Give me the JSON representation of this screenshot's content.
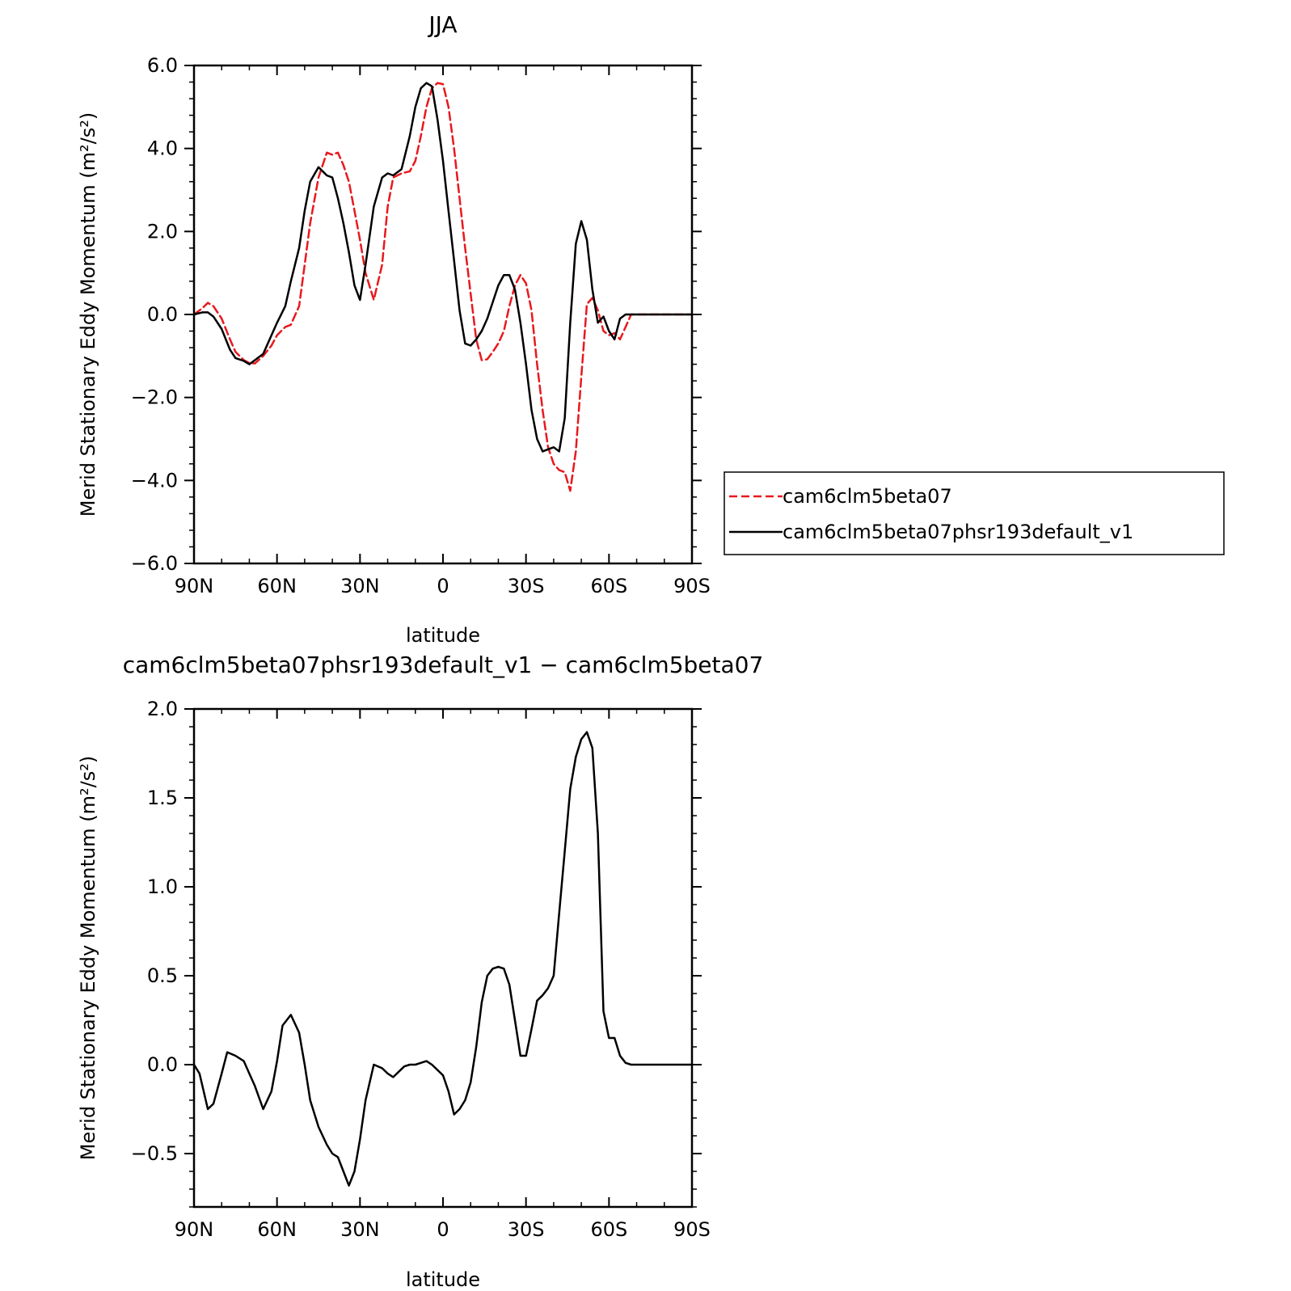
{
  "chart_data": [
    {
      "type": "line",
      "title": "JJA",
      "xlabel": "latitude",
      "ylabel": "Merid Stationary Eddy Momentum (m²/s²)",
      "xlim": [
        -90,
        90
      ],
      "ylim": [
        -6.0,
        6.0
      ],
      "xticks": [
        -90,
        -60,
        -30,
        0,
        30,
        60,
        90
      ],
      "xtick_labels": [
        "90N",
        "60N",
        "30N",
        "0",
        "30S",
        "60S",
        "90S"
      ],
      "yticks": [
        -6.0,
        -4.0,
        -2.0,
        0.0,
        2.0,
        4.0,
        6.0
      ],
      "ytick_labels": [
        "−6.0",
        "−4.0",
        "−2.0",
        "0.0",
        "2.0",
        "4.0",
        "6.0"
      ],
      "grid": false,
      "legend": "right",
      "series": [
        {
          "name": "cam6clm5beta07",
          "color": "#e8191e",
          "dash": "dashed",
          "x": [
            -90,
            -87,
            -85,
            -83,
            -80,
            -77,
            -75,
            -72,
            -70,
            -68,
            -65,
            -62,
            -60,
            -57,
            -55,
            -52,
            -50,
            -48,
            -45,
            -42,
            -40,
            -38,
            -36,
            -34,
            -32,
            -30,
            -28,
            -25,
            -22,
            -20,
            -18,
            -15,
            -12,
            -10,
            -8,
            -6,
            -4,
            -2,
            0,
            2,
            4,
            6,
            8,
            10,
            12,
            14,
            16,
            18,
            20,
            22,
            24,
            26,
            28,
            30,
            32,
            34,
            36,
            38,
            40,
            42,
            44,
            46,
            48,
            50,
            52,
            54,
            56,
            58,
            60,
            62,
            64,
            66,
            68,
            70,
            72,
            74,
            76,
            78,
            80,
            82,
            84,
            85,
            86,
            88,
            90
          ],
          "y": [
            0.0,
            0.15,
            0.28,
            0.2,
            -0.1,
            -0.6,
            -0.9,
            -1.1,
            -1.17,
            -1.18,
            -1.0,
            -0.75,
            -0.5,
            -0.3,
            -0.25,
            0.2,
            1.2,
            2.2,
            3.3,
            3.9,
            3.85,
            3.9,
            3.6,
            3.2,
            2.5,
            1.8,
            1.0,
            0.35,
            1.2,
            2.6,
            3.3,
            3.4,
            3.45,
            3.7,
            4.3,
            5.0,
            5.45,
            5.58,
            5.55,
            5.0,
            4.0,
            2.8,
            1.6,
            0.5,
            -0.6,
            -1.1,
            -1.08,
            -0.9,
            -0.7,
            -0.4,
            0.2,
            0.7,
            0.95,
            0.75,
            0.1,
            -1.2,
            -2.3,
            -3.2,
            -3.6,
            -3.75,
            -3.8,
            -4.25,
            -3.3,
            -1.5,
            0.25,
            0.4,
            0.1,
            -0.4,
            -0.5,
            -0.45,
            -0.6,
            -0.3,
            0.0,
            0.0,
            0.0,
            0.0,
            0.0,
            0.0,
            0.0,
            0.0,
            0.0,
            0.0,
            0.0,
            0.0,
            0.0
          ]
        },
        {
          "name": "cam6clm5beta07phsr193default_v1",
          "color": "#000000",
          "dash": "solid",
          "x": [
            -90,
            -87,
            -85,
            -83,
            -80,
            -77,
            -75,
            -72,
            -70,
            -68,
            -65,
            -62,
            -60,
            -57,
            -55,
            -52,
            -50,
            -48,
            -45,
            -42,
            -40,
            -38,
            -36,
            -34,
            -32,
            -30,
            -28,
            -25,
            -22,
            -20,
            -18,
            -15,
            -12,
            -10,
            -8,
            -6,
            -4,
            -2,
            0,
            2,
            4,
            6,
            8,
            10,
            12,
            14,
            16,
            18,
            20,
            22,
            24,
            26,
            28,
            30,
            32,
            34,
            36,
            38,
            40,
            42,
            44,
            46,
            48,
            50,
            52,
            54,
            56,
            58,
            60,
            62,
            64,
            66,
            68,
            70,
            72,
            74,
            76,
            78,
            80,
            82,
            84,
            85,
            86,
            88,
            90
          ],
          "y": [
            0.0,
            0.05,
            0.05,
            -0.05,
            -0.35,
            -0.85,
            -1.05,
            -1.12,
            -1.2,
            -1.1,
            -0.95,
            -0.5,
            -0.2,
            0.2,
            0.8,
            1.6,
            2.5,
            3.2,
            3.55,
            3.35,
            3.3,
            2.8,
            2.2,
            1.5,
            0.7,
            0.35,
            1.2,
            2.6,
            3.3,
            3.4,
            3.35,
            3.5,
            4.3,
            5.0,
            5.45,
            5.58,
            5.5,
            4.7,
            3.7,
            2.5,
            1.3,
            0.1,
            -0.7,
            -0.75,
            -0.6,
            -0.4,
            -0.1,
            0.3,
            0.7,
            0.95,
            0.95,
            0.6,
            -0.2,
            -1.2,
            -2.3,
            -3.0,
            -3.3,
            -3.25,
            -3.2,
            -3.3,
            -2.5,
            -0.2,
            1.7,
            2.25,
            1.8,
            0.6,
            -0.2,
            -0.05,
            -0.4,
            -0.6,
            -0.1,
            0.0,
            0.0,
            0.0,
            0.0,
            0.0,
            0.0,
            0.0,
            0.0,
            0.0,
            0.0,
            0.0,
            0.0,
            0.0,
            0.0
          ]
        }
      ]
    },
    {
      "type": "line",
      "title": "cam6clm5beta07phsr193default_v1 − cam6clm5beta07",
      "xlabel": "latitude",
      "ylabel": "Merid Stationary Eddy Momentum (m²/s²)",
      "xlim": [
        -90,
        90
      ],
      "ylim": [
        -0.8,
        2.0
      ],
      "xticks": [
        -90,
        -60,
        -30,
        0,
        30,
        60,
        90
      ],
      "xtick_labels": [
        "90N",
        "60N",
        "30N",
        "0",
        "30S",
        "60S",
        "90S"
      ],
      "yticks": [
        -0.5,
        0.0,
        0.5,
        1.0,
        1.5,
        2.0
      ],
      "ytick_labels": [
        "−0.5",
        "0.0",
        "0.5",
        "1.0",
        "1.5",
        "2.0"
      ],
      "grid": false,
      "series": [
        {
          "color": "#000000",
          "dash": "solid",
          "x": [
            -90,
            -88,
            -85,
            -83,
            -80,
            -78,
            -75,
            -72,
            -70,
            -68,
            -65,
            -62,
            -60,
            -58,
            -55,
            -52,
            -50,
            -48,
            -45,
            -42,
            -40,
            -38,
            -36,
            -34,
            -32,
            -30,
            -28,
            -25,
            -22,
            -20,
            -18,
            -16,
            -14,
            -12,
            -10,
            -8,
            -6,
            -4,
            -2,
            0,
            2,
            4,
            6,
            8,
            10,
            12,
            14,
            16,
            18,
            20,
            22,
            24,
            26,
            28,
            30,
            32,
            34,
            36,
            38,
            40,
            42,
            44,
            46,
            48,
            50,
            52,
            54,
            56,
            58,
            60,
            62,
            64,
            66,
            68,
            70,
            72,
            74,
            76,
            78,
            80,
            82,
            84,
            86,
            88,
            90
          ],
          "y": [
            0.0,
            -0.05,
            -0.25,
            -0.22,
            -0.05,
            0.07,
            0.05,
            0.02,
            -0.05,
            -0.12,
            -0.25,
            -0.15,
            0.02,
            0.22,
            0.28,
            0.18,
            0.0,
            -0.2,
            -0.35,
            -0.45,
            -0.5,
            -0.52,
            -0.6,
            -0.68,
            -0.6,
            -0.42,
            -0.2,
            0.0,
            -0.02,
            -0.05,
            -0.07,
            -0.04,
            -0.01,
            0.0,
            0.0,
            0.01,
            0.02,
            0.0,
            -0.03,
            -0.06,
            -0.15,
            -0.28,
            -0.25,
            -0.2,
            -0.1,
            0.1,
            0.35,
            0.5,
            0.54,
            0.55,
            0.54,
            0.45,
            0.25,
            0.05,
            0.05,
            0.2,
            0.36,
            0.39,
            0.43,
            0.5,
            0.85,
            1.2,
            1.55,
            1.73,
            1.83,
            1.87,
            1.78,
            1.3,
            0.3,
            0.15,
            0.15,
            0.05,
            0.01,
            0.0,
            0.0,
            0.0,
            0.0,
            0.0,
            0.0,
            0.0,
            0.0,
            0.0,
            0.0,
            0.0,
            0.0
          ]
        }
      ]
    }
  ]
}
